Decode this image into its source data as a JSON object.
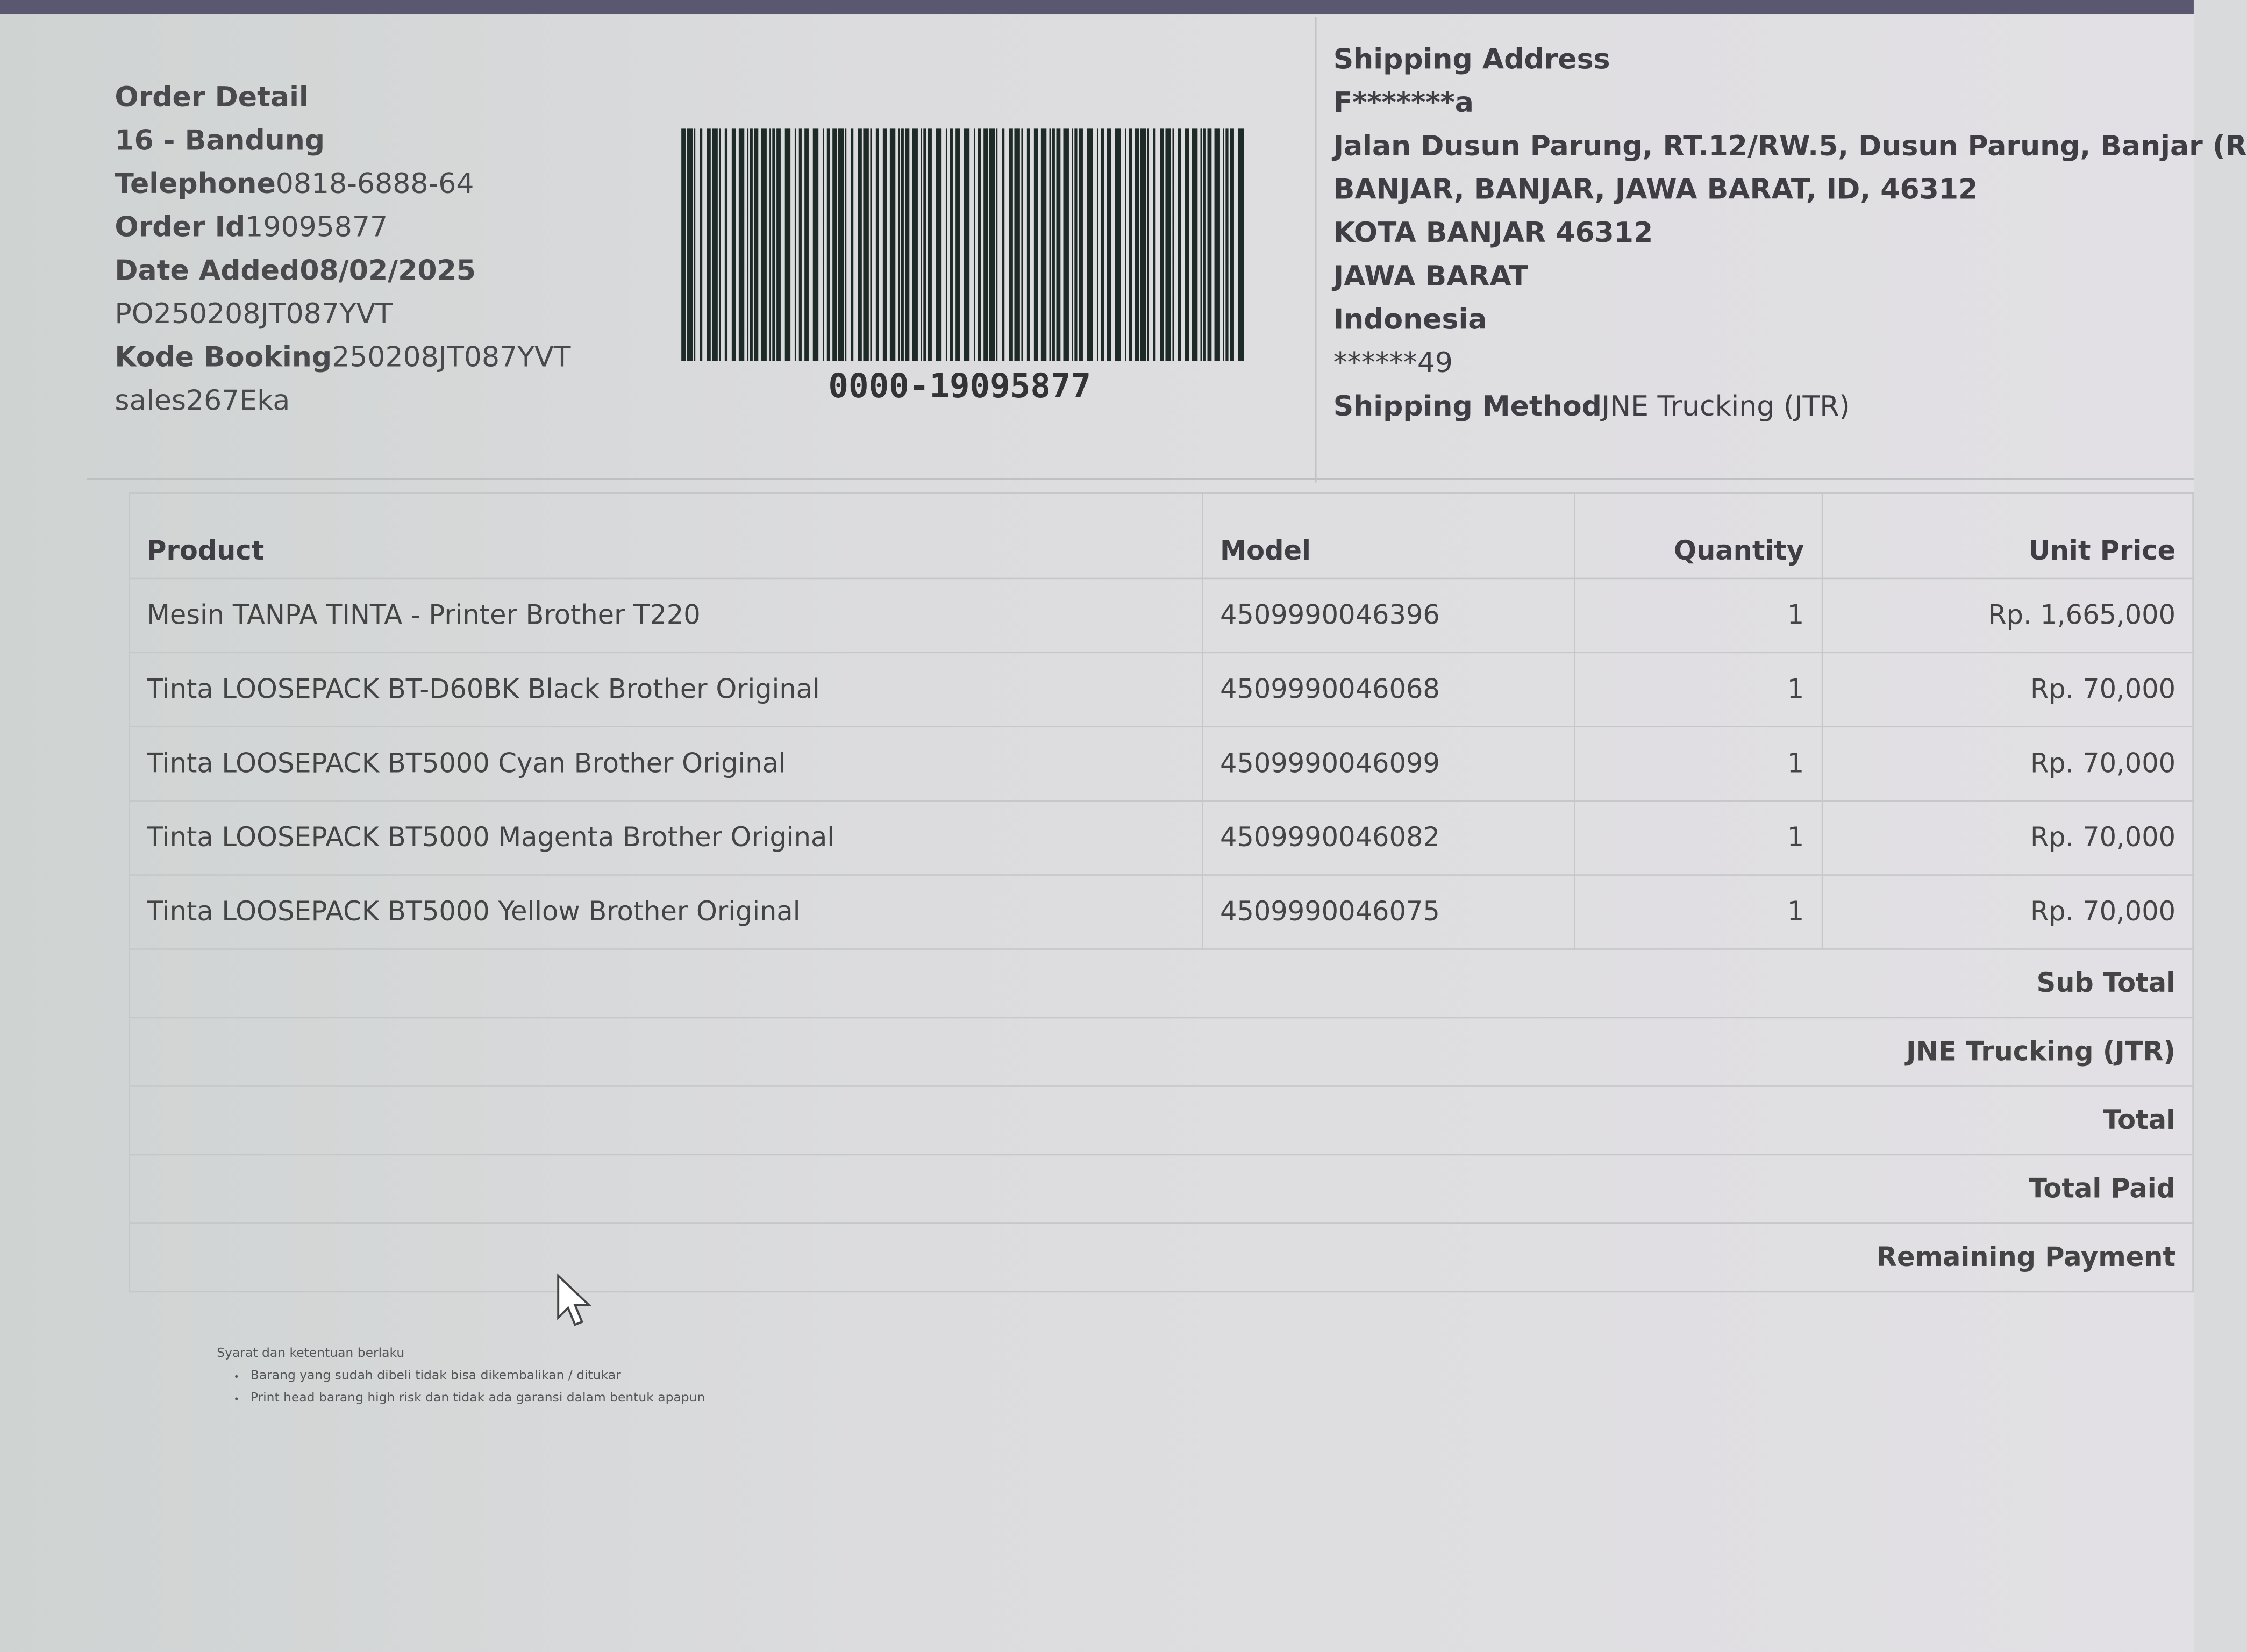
{
  "order_detail": {
    "title": "Order Detail",
    "store": "16 - Bandung",
    "telephone_label": "Telephone",
    "telephone": "0818-6888-64",
    "order_id_label": "Order Id",
    "order_id": "19095877",
    "date_added_label": "Date Added",
    "date_added": "08/02/2025",
    "po": "PO250208JT087YVT",
    "booking_label": "Kode Booking",
    "booking": "250208JT087YVT",
    "sales": "sales267Eka"
  },
  "barcode_number": "0000-19095877",
  "shipping": {
    "title": "Shipping Address",
    "name": "F*******a",
    "line1": "Jalan Dusun Parung, RT.12/RW.5, Dusun Parung, Banjar (R",
    "line2": "BANJAR, BANJAR, JAWA BARAT, ID, 46312",
    "line3": "KOTA BANJAR 46312",
    "line4": "JAWA BARAT",
    "line5": "Indonesia",
    "phone": "******49",
    "method_label": "Shipping Method",
    "method": "JNE Trucking (JTR)"
  },
  "table": {
    "headers": [
      "Product",
      "Model",
      "Quantity",
      "Unit Price"
    ],
    "rows": [
      {
        "product": "Mesin TANPA TINTA - Printer Brother T220",
        "model": "4509990046396",
        "qty": "1",
        "price": "Rp. 1,665,000"
      },
      {
        "product": "Tinta LOOSEPACK BT-D60BK Black Brother Original",
        "model": "4509990046068",
        "qty": "1",
        "price": "Rp. 70,000"
      },
      {
        "product": "Tinta LOOSEPACK BT5000 Cyan Brother Original",
        "model": "4509990046099",
        "qty": "1",
        "price": "Rp. 70,000"
      },
      {
        "product": "Tinta LOOSEPACK BT5000 Magenta Brother Original",
        "model": "4509990046082",
        "qty": "1",
        "price": "Rp. 70,000"
      },
      {
        "product": "Tinta LOOSEPACK BT5000 Yellow Brother Original",
        "model": "4509990046075",
        "qty": "1",
        "price": "Rp. 70,000"
      }
    ],
    "totals": [
      "Sub Total",
      "JNE Trucking (JTR)",
      "Total",
      "Total Paid",
      "Remaining Payment"
    ]
  },
  "terms": {
    "title": "Syarat dan ketentuan berlaku",
    "items": [
      "Barang yang sudah dibeli tidak bisa dikembalikan / ditukar",
      "Print head barang high risk dan tidak ada garansi dalam bentuk apapun"
    ]
  }
}
